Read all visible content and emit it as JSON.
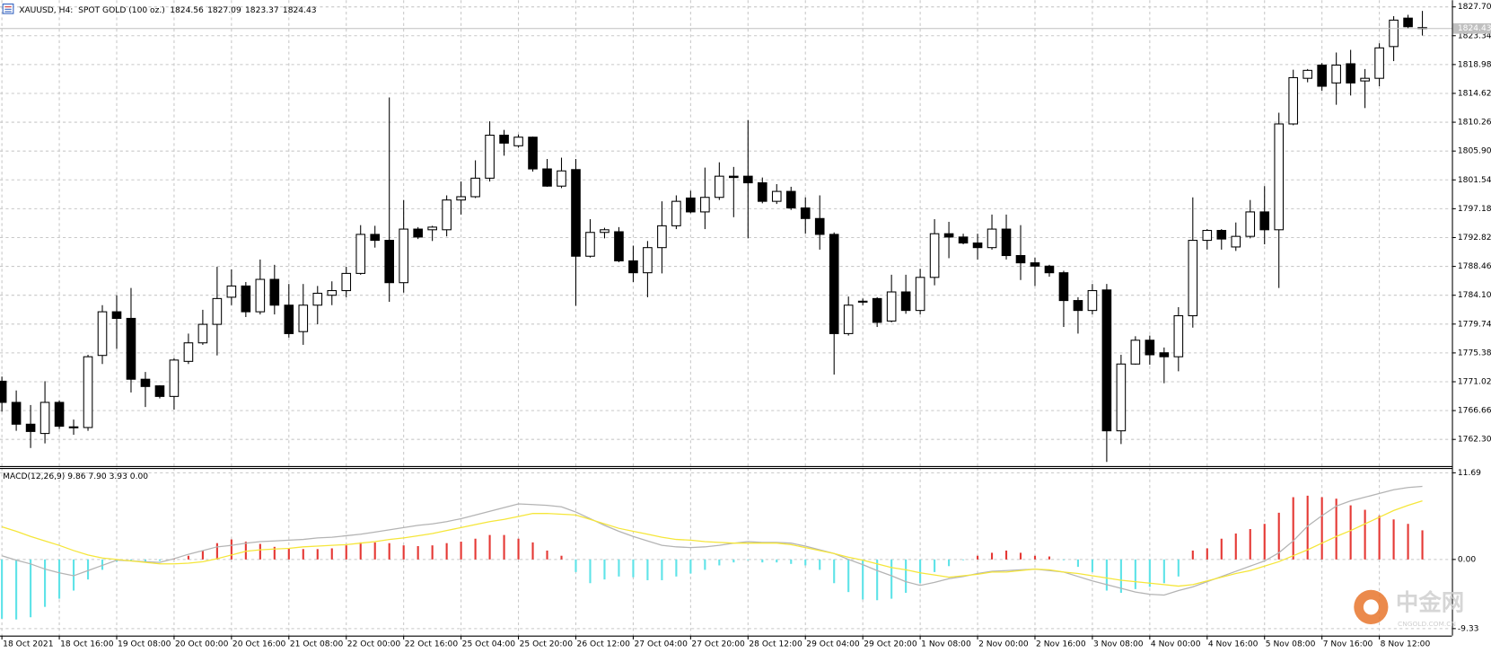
{
  "chart_data": [
    {
      "type": "candlestick",
      "title": "XAUUSD, H4:  SPOT GOLD (100 oz.)",
      "categories": [
        "18 Oct 2021",
        null,
        null,
        null,
        "18 Oct 16:00",
        null,
        null,
        null,
        "19 Oct 08:00",
        null,
        null,
        null,
        "20 Oct 00:00",
        null,
        null,
        null,
        "20 Oct 16:00",
        null,
        null,
        null,
        "21 Oct 08:00",
        null,
        null,
        null,
        "22 Oct 00:00",
        null,
        null,
        null,
        "22 Oct 16:00",
        null,
        null,
        null,
        "25 Oct 04:00",
        null,
        null,
        null,
        "25 Oct 20:00",
        null,
        null,
        null,
        "26 Oct 12:00",
        null,
        null,
        null,
        "27 Oct 04:00",
        null,
        null,
        null,
        "27 Oct 20:00",
        null,
        null,
        null,
        "28 Oct 12:00",
        null,
        null,
        null,
        "29 Oct 04:00",
        null,
        null,
        null,
        "29 Oct 20:00",
        null,
        null,
        null,
        "1 Nov 08:00",
        null,
        null,
        null,
        "2 Nov 00:00",
        null,
        null,
        null,
        "2 Nov 16:00",
        null,
        null,
        null,
        "3 Nov 08:00",
        null,
        null,
        null,
        "4 Nov 00:00",
        null,
        null,
        null,
        "4 Nov 16:00",
        null,
        null,
        null,
        "5 Nov 08:00",
        null,
        null,
        null,
        "7 Nov 16:00",
        null,
        null,
        null,
        "8 Nov 12:00",
        null,
        null,
        null
      ],
      "open": [
        1771.1,
        1767.9,
        1764.6,
        1763.2,
        1767.9,
        1764.2,
        1764.1,
        1775.0,
        1781.6,
        1780.6,
        1771.4,
        1770.4,
        1768.8,
        1774.1,
        1776.9,
        1779.7,
        1783.8,
        1785.5,
        1781.6,
        1786.5,
        1782.6,
        1778.6,
        1782.6,
        1784.1,
        1784.8,
        1787.4,
        1793.3,
        1792.4,
        1786.0,
        1794.1,
        1794.0,
        1794.0,
        1798.5,
        1799.0,
        1801.8,
        1808.3,
        1806.7,
        1808.0,
        1803.2,
        1800.6,
        1803.1,
        1790.0,
        1793.6,
        1793.7,
        1789.3,
        1787.5,
        1791.3,
        1794.6,
        1798.8,
        1796.7,
        1798.9,
        1802.1,
        1802.1,
        1801.1,
        1798.3,
        1799.8,
        1797.3,
        1795.7,
        1793.3,
        1778.3,
        1783.1,
        1783.6,
        1780.2,
        1784.6,
        1781.8,
        1786.8,
        1793.4,
        1792.9,
        1792.0,
        1791.3,
        1794.1,
        1790.1,
        1789.0,
        1788.5,
        1787.5,
        1783.3,
        1781.8,
        1784.9,
        1763.6,
        1773.7,
        1777.3,
        1775.4,
        1774.8,
        1781.0,
        1792.4,
        1793.9,
        1791.4,
        1793.0,
        1796.7,
        1794.0,
        1810.0,
        1816.9,
        1818.9,
        1816.2,
        1819.1,
        1816.5,
        1816.9,
        1821.7,
        1826.0,
        1824.56
      ],
      "high": [
        1771.8,
        1769.7,
        1767.5,
        1771.1,
        1768.2,
        1765.3,
        1775.1,
        1782.6,
        1784.1,
        1785.2,
        1772.5,
        1770.5,
        1774.6,
        1778.3,
        1781.9,
        1788.4,
        1788.0,
        1786.1,
        1789.5,
        1788.7,
        1785.8,
        1785.8,
        1785.5,
        1786.2,
        1788.4,
        1794.7,
        1794.6,
        1814.0,
        1798.5,
        1794.4,
        1794.6,
        1799.2,
        1801.3,
        1804.5,
        1810.4,
        1809.1,
        1808.4,
        1808.1,
        1804.7,
        1804.9,
        1804.7,
        1795.6,
        1794.3,
        1794.4,
        1791.6,
        1792.3,
        1798.3,
        1799.2,
        1799.9,
        1803.4,
        1804.2,
        1803.5,
        1810.6,
        1801.9,
        1800.9,
        1800.5,
        1798.9,
        1799.2,
        1793.6,
        1783.9,
        1783.6,
        1783.8,
        1787.2,
        1787.2,
        1788.1,
        1795.6,
        1795.2,
        1793.4,
        1793.4,
        1796.3,
        1796.3,
        1794.7,
        1789.8,
        1788.7,
        1787.8,
        1783.8,
        1785.8,
        1785.8,
        1775.1,
        1777.9,
        1778.0,
        1776.2,
        1782.3,
        1798.9,
        1794.1,
        1794.1,
        1795.1,
        1798.5,
        1800.6,
        1811.7,
        1818.2,
        1818.3,
        1819.2,
        1820.8,
        1821.2,
        1818.3,
        1822.2,
        1826.3,
        1826.5,
        1827.09
      ],
      "low": [
        1766.5,
        1763.6,
        1761.0,
        1761.7,
        1763.9,
        1763.0,
        1763.6,
        1773.7,
        1776.0,
        1769.4,
        1767.2,
        1768.5,
        1766.8,
        1773.7,
        1776.6,
        1775.0,
        1782.6,
        1780.8,
        1781.2,
        1781.2,
        1777.7,
        1776.6,
        1779.7,
        1782.6,
        1783.8,
        1787.2,
        1791.3,
        1783.1,
        1784.5,
        1792.6,
        1792.3,
        1793.0,
        1796.3,
        1798.8,
        1801.3,
        1805.2,
        1806.4,
        1802.8,
        1800.5,
        1800.3,
        1782.5,
        1789.8,
        1792.7,
        1789.1,
        1786.1,
        1783.8,
        1787.4,
        1794.1,
        1796.5,
        1794.1,
        1798.5,
        1795.9,
        1792.7,
        1798.0,
        1797.9,
        1797.0,
        1793.4,
        1791.0,
        1772.1,
        1778.0,
        1782.6,
        1779.3,
        1780.0,
        1781.3,
        1781.2,
        1785.6,
        1789.7,
        1791.8,
        1789.5,
        1791.0,
        1789.5,
        1786.4,
        1785.5,
        1786.9,
        1779.3,
        1778.3,
        1781.2,
        1758.9,
        1761.6,
        1773.6,
        1773.6,
        1770.8,
        1772.6,
        1779.2,
        1791.0,
        1791.0,
        1790.8,
        1792.7,
        1791.8,
        1785.2,
        1809.8,
        1816.3,
        1815.0,
        1812.9,
        1814.3,
        1812.4,
        1815.7,
        1819.5,
        1824.4,
        1823.37
      ],
      "close": [
        1767.9,
        1764.6,
        1763.5,
        1767.9,
        1764.3,
        1764.1,
        1774.8,
        1781.6,
        1780.6,
        1771.4,
        1770.3,
        1768.8,
        1774.3,
        1776.9,
        1779.7,
        1783.6,
        1785.5,
        1781.6,
        1786.5,
        1782.6,
        1778.3,
        1782.6,
        1784.4,
        1784.8,
        1787.4,
        1793.3,
        1792.4,
        1786.0,
        1794.1,
        1792.9,
        1794.4,
        1798.5,
        1799.0,
        1801.8,
        1808.3,
        1807.1,
        1808.0,
        1803.2,
        1800.6,
        1802.9,
        1790.0,
        1793.6,
        1794.0,
        1789.3,
        1787.5,
        1791.3,
        1794.6,
        1798.3,
        1796.7,
        1798.9,
        1802.1,
        1801.9,
        1801.1,
        1798.3,
        1799.8,
        1797.3,
        1795.7,
        1793.3,
        1778.3,
        1782.6,
        1783.2,
        1780.0,
        1784.6,
        1781.8,
        1786.8,
        1793.4,
        1792.9,
        1792.0,
        1791.3,
        1794.1,
        1790.1,
        1789.0,
        1788.5,
        1787.5,
        1783.3,
        1781.8,
        1784.8,
        1763.6,
        1773.7,
        1777.3,
        1775.1,
        1774.8,
        1781.0,
        1792.4,
        1793.9,
        1792.6,
        1793.0,
        1796.7,
        1794.0,
        1810.0,
        1817.0,
        1818.1,
        1815.7,
        1818.9,
        1816.2,
        1816.9,
        1821.5,
        1825.7,
        1824.7,
        1824.43
      ],
      "up_color": "#ffffff",
      "down_color": "#000000",
      "line_color": "#000000",
      "last_price_color": "#c0c0c0",
      "ylim": [
        1758.27,
        1828.71
      ],
      "yticks": [
        {
          "value": 1827.7,
          "label": "1827.70"
        },
        1823.34,
        1818.98,
        1814.62,
        1810.26,
        {
          "value": 1805.9,
          "label": "1805.90"
        },
        1801.54,
        1797.18,
        1792.82,
        1788.46,
        {
          "value": 1784.1,
          "label": "1784.10"
        },
        1779.74,
        1775.38,
        1771.02,
        1766.66,
        {
          "value": 1762.3,
          "label": "1762.30"
        }
      ],
      "grid": true
    },
    {
      "type": "macd",
      "title": "MACD(12,26,9) 9.86 7.90 3.93 0.00",
      "series": [
        {
          "type": "bar",
          "color": "#e53935",
          "negative_color": "#5fe3e8",
          "values": [
            -8.0,
            -8.1,
            -7.8,
            -6.4,
            -5.3,
            -4.2,
            -2.7,
            -1.4,
            -0.3,
            -0.2,
            -0.3,
            -0.2,
            0.1,
            0.5,
            1.2,
            2.2,
            2.7,
            2.4,
            2.1,
            1.7,
            1.5,
            1.4,
            1.4,
            1.5,
            1.9,
            2.3,
            2.3,
            2.2,
            1.9,
            1.8,
            1.9,
            2.2,
            2.4,
            2.8,
            3.3,
            3.3,
            2.8,
            2.3,
            1.2,
            0.5,
            -1.7,
            -3.2,
            -2.7,
            -2.3,
            -2.4,
            -2.8,
            -2.8,
            -2.3,
            -1.9,
            -1.4,
            -0.8,
            -0.4,
            -0.1,
            -0.4,
            -0.4,
            -0.6,
            -0.8,
            -1.4,
            -3.2,
            -4.4,
            -5.4,
            -5.5,
            -5.3,
            -4.5,
            -3.2,
            -1.7,
            -0.9,
            -0.1,
            0.5,
            0.9,
            1.2,
            0.9,
            0.5,
            0.4,
            -0.1,
            -1.0,
            -1.7,
            -4.2,
            -4.5,
            -4.0,
            -3.7,
            -3.2,
            -2.3,
            1.2,
            1.5,
            2.8,
            3.5,
            4.1,
            4.8,
            6.3,
            8.4,
            8.6,
            8.4,
            8.2,
            7.3,
            6.7,
            5.9,
            5.4,
            4.8,
            3.93
          ]
        },
        {
          "type": "line",
          "color": "#b4b4b4",
          "values": [
            0.5,
            -0.1,
            -0.6,
            -1.3,
            -1.8,
            -2.2,
            -1.5,
            -0.8,
            -0.1,
            -0.2,
            -0.3,
            -0.4,
            0.1,
            0.7,
            1.2,
            1.7,
            1.9,
            2.2,
            2.4,
            2.5,
            2.6,
            2.7,
            2.9,
            3.0,
            3.2,
            3.4,
            3.7,
            4.0,
            4.3,
            4.6,
            4.8,
            5.1,
            5.5,
            6.0,
            6.5,
            7.0,
            7.5,
            7.4,
            7.3,
            7.1,
            6.4,
            5.5,
            4.6,
            3.8,
            3.1,
            2.5,
            1.9,
            1.7,
            1.6,
            1.7,
            1.9,
            2.2,
            2.4,
            2.3,
            2.3,
            2.2,
            1.8,
            1.3,
            0.8,
            0.0,
            -0.7,
            -1.5,
            -2.2,
            -3.0,
            -3.5,
            -3.1,
            -2.6,
            -2.3,
            -1.9,
            -1.6,
            -1.5,
            -1.4,
            -1.3,
            -1.5,
            -1.7,
            -2.3,
            -2.9,
            -3.4,
            -3.9,
            -4.4,
            -4.7,
            -4.8,
            -4.2,
            -3.7,
            -3.0,
            -2.3,
            -1.6,
            -0.9,
            -0.2,
            0.9,
            2.5,
            4.5,
            5.9,
            7.2,
            7.9,
            8.4,
            8.9,
            9.4,
            9.7,
            9.86
          ]
        },
        {
          "type": "line",
          "color": "#f5e63a",
          "values": [
            4.4,
            3.8,
            3.1,
            2.5,
            1.9,
            1.2,
            0.6,
            0.2,
            0.0,
            -0.2,
            -0.4,
            -0.6,
            -0.6,
            -0.5,
            -0.3,
            0.1,
            0.6,
            1.1,
            1.3,
            1.4,
            1.5,
            1.7,
            1.8,
            1.9,
            2.0,
            2.2,
            2.4,
            2.7,
            2.9,
            3.2,
            3.5,
            3.9,
            4.3,
            4.7,
            5.1,
            5.4,
            5.8,
            6.2,
            6.2,
            6.1,
            6.0,
            5.4,
            4.8,
            4.2,
            3.8,
            3.4,
            3.0,
            2.7,
            2.6,
            2.4,
            2.3,
            2.2,
            2.2,
            2.2,
            2.2,
            2.0,
            1.6,
            1.2,
            0.8,
            0.3,
            -0.1,
            -0.6,
            -1.1,
            -1.4,
            -1.8,
            -2.1,
            -2.4,
            -2.2,
            -2.0,
            -1.7,
            -1.7,
            -1.5,
            -1.3,
            -1.4,
            -1.7,
            -1.9,
            -2.2,
            -2.5,
            -2.8,
            -3.0,
            -3.2,
            -3.4,
            -3.6,
            -3.4,
            -2.9,
            -2.4,
            -1.9,
            -1.5,
            -0.9,
            -0.3,
            0.5,
            1.3,
            2.2,
            3.1,
            3.9,
            4.8,
            5.7,
            6.6,
            7.3,
            7.9
          ]
        }
      ],
      "ylim": [
        -10.28,
        12.34
      ],
      "yticks": [
        11.69,
        {
          "value": 0,
          "label": "0.00"
        },
        -9.33
      ],
      "grid": true
    }
  ],
  "watermark": {
    "logo": "中金网",
    "site": "CNGOLD.COM.CN"
  }
}
